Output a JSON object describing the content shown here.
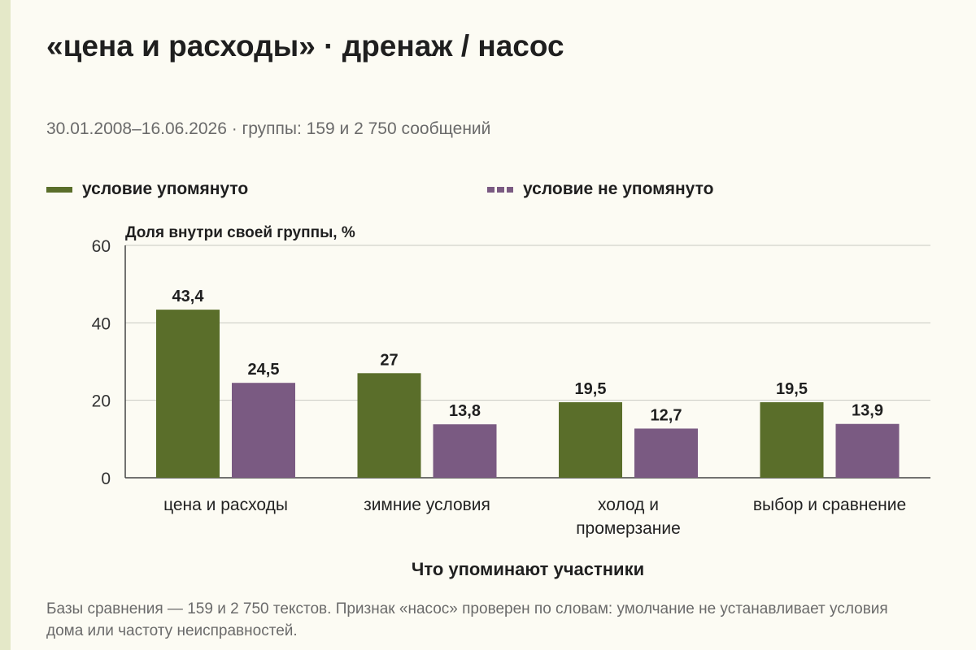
{
  "header": {
    "title": "«цена и расходы» · дренаж / насос",
    "subtitle": "30.01.2008–16.06.2026 · группы: 159 и 2 750 сообщений"
  },
  "legend": {
    "placement": "top",
    "items": [
      {
        "label": "условие упомянуто",
        "color": "#5a6e2a",
        "style": "solid"
      },
      {
        "label": "условие не упомянуто",
        "color": "#7a5a82",
        "style": "dashed"
      }
    ]
  },
  "chart_data": {
    "type": "bar",
    "ylabel": "Доля внутри своей группы, %",
    "xlabel": "Что упоминают участники",
    "categories": [
      [
        "цена и расходы"
      ],
      [
        "зимние условия"
      ],
      [
        "холод и",
        "промерзание"
      ],
      [
        "выбор и сравнение"
      ]
    ],
    "series": [
      {
        "name": "условие упомянуто",
        "color": "#5a6e2a",
        "values": [
          43.4,
          27,
          19.5,
          19.5
        ],
        "labels": [
          "43,4",
          "27",
          "19,5",
          "19,5"
        ]
      },
      {
        "name": "условие не упомянуто",
        "color": "#7a5a82",
        "values": [
          24.5,
          13.8,
          12.7,
          13.9
        ],
        "labels": [
          "24,5",
          "13,8",
          "12,7",
          "13,9"
        ]
      }
    ],
    "ylim": [
      0,
      60
    ],
    "yticks": [
      0,
      20,
      40,
      60
    ],
    "ytick_labels": [
      "0",
      "20",
      "40",
      "60"
    ],
    "grid": true
  },
  "footnote": "Базы сравнения — 159 и 2 750 текстов. Признак «насос» проверен по словам: умолчание не устанавливает условия дома или частоту неисправностей."
}
